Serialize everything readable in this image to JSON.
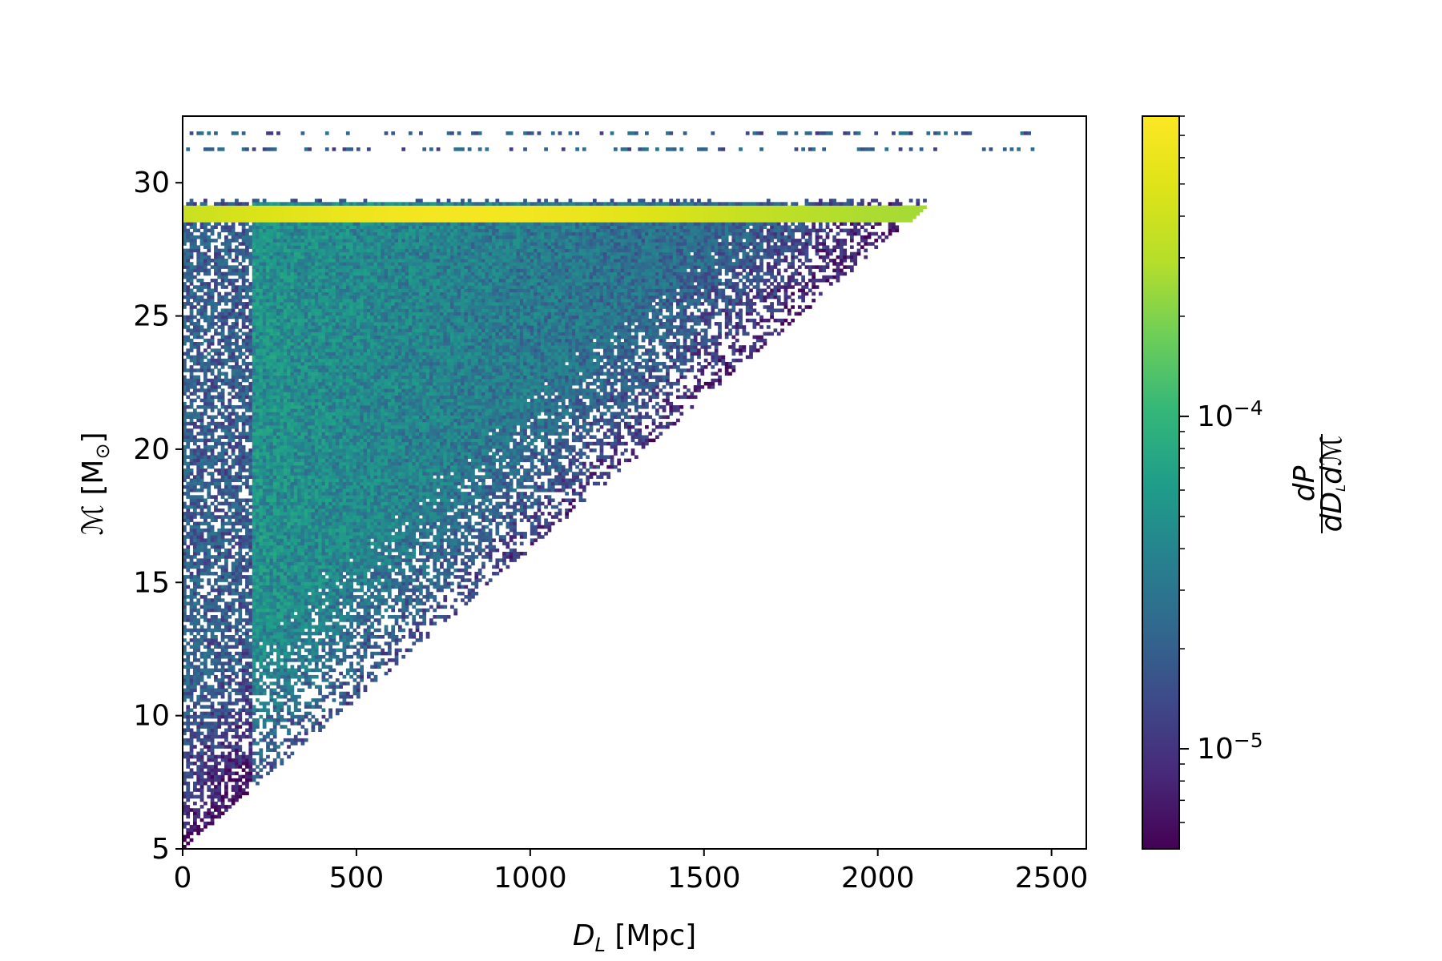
{
  "chart_data": {
    "type": "heatmap",
    "title": "",
    "xlabel": {
      "symbol": "D",
      "subscript": "L",
      "unit": " [Mpc]"
    },
    "ylabel": {
      "symbol": "ℳ",
      "unit": " [M",
      "unit_sub": "⊙",
      "unit_close": "]"
    },
    "xlim": [
      0,
      2600
    ],
    "ylim": [
      5,
      32.5
    ],
    "x_ticks": [
      0,
      500,
      1000,
      1500,
      2000,
      2500
    ],
    "x_tick_labels": [
      "0",
      "500",
      "1000",
      "1500",
      "2000",
      "2500"
    ],
    "y_ticks": [
      5,
      10,
      15,
      20,
      25,
      30
    ],
    "y_tick_labels": [
      "5",
      "10",
      "15",
      "20",
      "25",
      "30"
    ],
    "colorbar": {
      "label": "dP/(dD_L dℳ)",
      "label_num": "dP",
      "label_den": "dD",
      "label_den_sub": "L",
      "label_den_tail": "dℳ",
      "scale": "log",
      "range": [
        5e-06,
        0.0008
      ],
      "major_ticks": [
        {
          "value": 1e-05,
          "base": "10",
          "exp": "−5"
        },
        {
          "value": 0.0001,
          "base": "10",
          "exp": "−4"
        }
      ],
      "colormap": "viridis"
    },
    "grid": false,
    "features": {
      "peak_band_chirp_mass": 28.85,
      "peak_band_density": 0.0007,
      "bulk_density": 6e-05,
      "edge_density": 1e-05,
      "upper_boundary_chirp_mass_at_max_distance": 29.2,
      "max_distance": 2450,
      "lower_chirp_mass_limit": 5.0,
      "sparse_column_max_distance": 200,
      "sparse_top_row_chirp_mass": [
        31.2,
        31.8
      ]
    }
  }
}
